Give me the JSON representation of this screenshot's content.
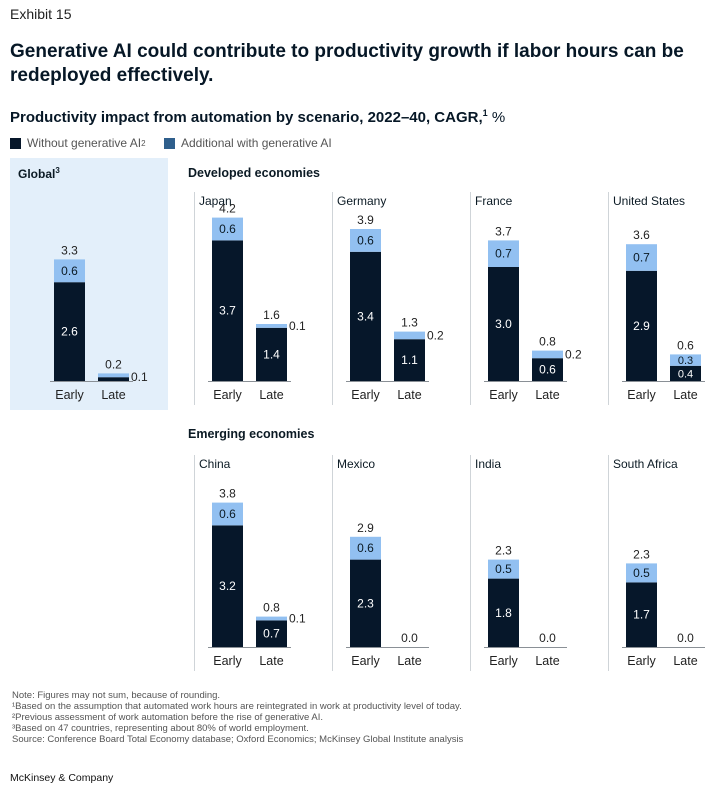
{
  "exhibit": "Exhibit 15",
  "headline": "Generative AI could contribute to productivity growth if labor hours can be redeployed effectively.",
  "subtitle": {
    "text": "Productivity impact from automation by scenario, 2022–40, CAGR,",
    "footnote_mark": "1",
    "unit": " %"
  },
  "legend": [
    {
      "label": "Without generative AI",
      "footnote_mark": "2",
      "color": "#06172a"
    },
    {
      "label": "Additional with generative AI",
      "footnote_mark": "",
      "color": "#2f5f8c"
    }
  ],
  "colors": {
    "base": "#06172a",
    "additional": "#92c0f1",
    "global_bg": "#e3effa",
    "baseline": "#8a9096"
  },
  "global_label": {
    "text": "Global",
    "footnote_mark": "3"
  },
  "sections": {
    "developed": "Developed economies",
    "emerging": "Emerging economies"
  },
  "chart_data": {
    "type": "bar",
    "stacked": true,
    "categories": [
      "Early",
      "Late"
    ],
    "series_names": [
      "Without generative AI",
      "Additional with generative AI"
    ],
    "panels": [
      {
        "name": "Global",
        "group": "Global",
        "values": {
          "Early": {
            "base": 2.6,
            "add": 0.6,
            "total": 3.3
          },
          "Late": {
            "base": 0.1,
            "add": 0.1,
            "total": 0.2
          }
        }
      },
      {
        "name": "Japan",
        "group": "Developed economies",
        "values": {
          "Early": {
            "base": 3.7,
            "add": 0.6,
            "total": 4.2
          },
          "Late": {
            "base": 1.4,
            "add": 0.1,
            "total": 1.6
          }
        }
      },
      {
        "name": "Germany",
        "group": "Developed economies",
        "values": {
          "Early": {
            "base": 3.4,
            "add": 0.6,
            "total": 3.9
          },
          "Late": {
            "base": 1.1,
            "add": 0.2,
            "total": 1.3
          }
        }
      },
      {
        "name": "France",
        "group": "Developed economies",
        "values": {
          "Early": {
            "base": 3.0,
            "add": 0.7,
            "total": 3.7
          },
          "Late": {
            "base": 0.6,
            "add": 0.2,
            "total": 0.8
          }
        }
      },
      {
        "name": "United States",
        "group": "Developed economies",
        "values": {
          "Early": {
            "base": 2.9,
            "add": 0.7,
            "total": 3.6
          },
          "Late": {
            "base": 0.4,
            "add": 0.3,
            "total": 0.6
          }
        }
      },
      {
        "name": "China",
        "group": "Emerging economies",
        "values": {
          "Early": {
            "base": 3.2,
            "add": 0.6,
            "total": 3.8
          },
          "Late": {
            "base": 0.7,
            "add": 0.1,
            "total": 0.8
          }
        }
      },
      {
        "name": "Mexico",
        "group": "Emerging economies",
        "values": {
          "Early": {
            "base": 2.3,
            "add": 0.6,
            "total": 2.9
          },
          "Late": {
            "base": 0.0,
            "add": 0.0,
            "total": 0.0
          }
        }
      },
      {
        "name": "India",
        "group": "Emerging economies",
        "values": {
          "Early": {
            "base": 1.8,
            "add": 0.5,
            "total": 2.3
          },
          "Late": {
            "base": 0.0,
            "add": 0.0,
            "total": 0.0
          }
        }
      },
      {
        "name": "South Africa",
        "group": "Emerging economies",
        "values": {
          "Early": {
            "base": 1.7,
            "add": 0.5,
            "total": 2.3
          },
          "Late": {
            "base": 0.0,
            "add": 0.0,
            "total": 0.0
          }
        }
      }
    ]
  },
  "footnotes": [
    "Note: Figures may not sum, because of rounding.",
    "¹Based on the assumption that automated work hours are reintegrated in work at productivity level of today.",
    "²Previous assessment of work automation before the rise of generative AI.",
    "³Based on 47 countries, representing about 80% of world employment.",
    "Source: Conference Board Total Economy database; Oxford Economics; McKinsey Global Institute analysis"
  ],
  "brand": "McKinsey & Company"
}
